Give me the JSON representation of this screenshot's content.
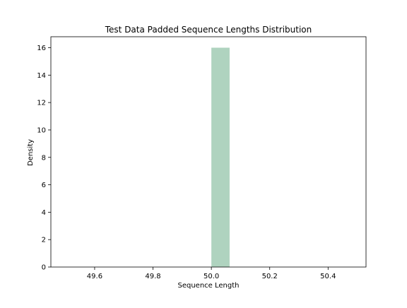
{
  "chart_data": {
    "type": "bar",
    "title": "Test Data Padded Sequence Lengths Distribution",
    "xlabel": "Sequence Length",
    "ylabel": "Density",
    "xlim": [
      49.45,
      50.53
    ],
    "ylim": [
      0,
      16.8
    ],
    "xticks": [
      49.6,
      49.8,
      50.0,
      50.2,
      50.4
    ],
    "xtick_labels": [
      "49.6",
      "49.8",
      "50.0",
      "50.2",
      "50.4"
    ],
    "yticks": [
      0,
      2,
      4,
      6,
      8,
      10,
      12,
      14,
      16
    ],
    "ytick_labels": [
      "0",
      "2",
      "4",
      "6",
      "8",
      "10",
      "12",
      "14",
      "16"
    ],
    "bins": [
      {
        "x0": 50.0,
        "x1": 50.0625,
        "value": 16
      }
    ],
    "bar_color": "#afd3bf",
    "grid": false
  }
}
